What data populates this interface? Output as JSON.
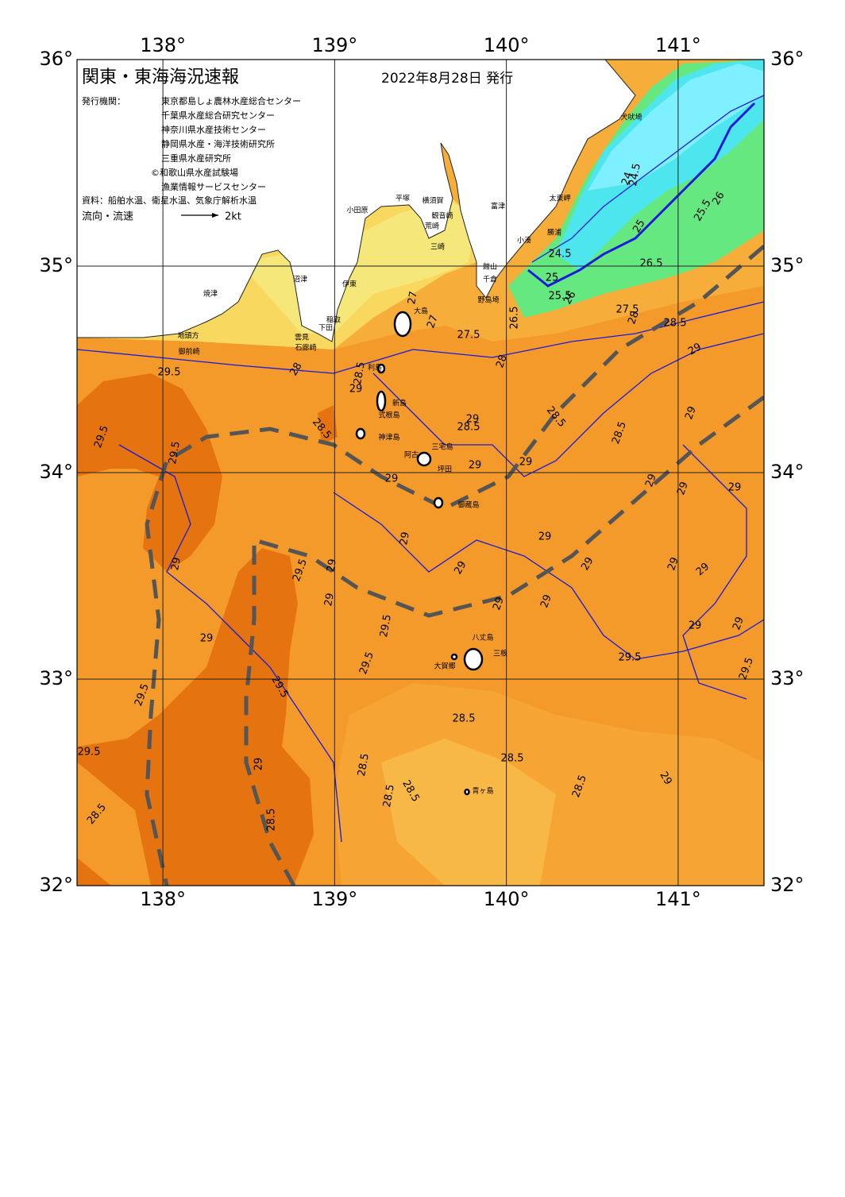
{
  "map": {
    "title": "関東・東海海況速報",
    "issue_date": "2022年8月28日 発行",
    "agencies_label": "発行機関：",
    "agencies": [
      "東京都島しょ農林水産総合センター",
      "千葉県水産総合研究センター",
      "神奈川県水産技術センター",
      "静岡県水産・海洋技術研究所",
      "三重県水産研究所",
      "©和歌山県水産試験場",
      "漁業情報サービスセンター"
    ],
    "source": "資料：船舶水温、衛星水温、気象庁解析水温",
    "flow_label": "流向・流速",
    "flow_scale": "2kt",
    "xlim": [
      137.5,
      141.5
    ],
    "ylim": [
      32,
      36
    ],
    "xticks": [
      {
        "value": 138,
        "label": "138°"
      },
      {
        "value": 139,
        "label": "139°"
      },
      {
        "value": 140,
        "label": "140°"
      },
      {
        "value": 141,
        "label": "141°"
      }
    ],
    "yticks": [
      {
        "value": 32,
        "label": "32°"
      },
      {
        "value": 33,
        "label": "33°"
      },
      {
        "value": 34,
        "label": "34°"
      },
      {
        "value": 35,
        "label": "35°"
      },
      {
        "value": 36,
        "label": "36°"
      }
    ],
    "places": [
      "犬吠埼",
      "太東岬",
      "勝浦",
      "小湊",
      "館山",
      "千倉",
      "野島埼",
      "富津",
      "横須賀",
      "観音崎",
      "荒崎",
      "三崎",
      "平塚",
      "小田原",
      "大島",
      "沼津",
      "伊東",
      "稲取",
      "下田",
      "雲見",
      "石廊崎",
      "焼津",
      "地頭方",
      "御前崎",
      "利島",
      "新島",
      "式根島",
      "神津島",
      "三宅島",
      "阿古",
      "坪田",
      "御蔵島",
      "八丈島",
      "三根",
      "大賀郷",
      "青ヶ島"
    ],
    "contour_labels": [
      "24",
      "24.5",
      "25.5",
      "26",
      "25",
      "24.5",
      "26.5",
      "25",
      "25.5",
      "26",
      "27.5",
      "27",
      "27",
      "27.5",
      "26.5",
      "28",
      "28.5",
      "28",
      "28.5",
      "29",
      "28",
      "28.5",
      "29",
      "29.5",
      "29.5",
      "29.5",
      "28.5",
      "28.5",
      "29",
      "29",
      "29",
      "28.5",
      "29",
      "29",
      "29",
      "29",
      "29",
      "29",
      "29.5",
      "29",
      "29",
      "29",
      "29",
      "29",
      "29",
      "29",
      "29",
      "29.5",
      "29",
      "29",
      "29",
      "29",
      "29",
      "29.5",
      "29.5",
      "29.5",
      "29.5",
      "29.5",
      "29.5",
      "29",
      "28.5",
      "28.5",
      "28.5",
      "28.5",
      "28.5",
      "28.5",
      "28.5",
      "28.5",
      "29"
    ]
  }
}
